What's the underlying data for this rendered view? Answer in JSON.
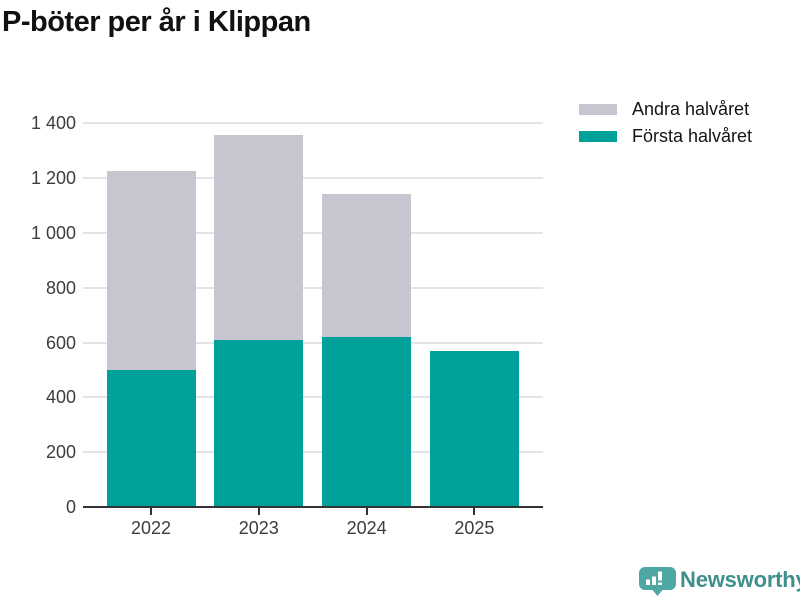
{
  "header": {
    "title": "P-böter per år i Klippan"
  },
  "legend": {
    "items": [
      {
        "label": "Andra halvåret",
        "color": "#c8c5d1"
      },
      {
        "label": "Första halvåret",
        "color": "#00a19b"
      }
    ]
  },
  "chart_data": {
    "type": "bar",
    "stacked": true,
    "title": "P-böter per år i Klippan",
    "categories": [
      "2022",
      "2023",
      "2024",
      "2025"
    ],
    "series": [
      {
        "name": "Första halvåret",
        "color": "#00a19b",
        "values": [
          500,
          610,
          620,
          570
        ]
      },
      {
        "name": "Andra halvåret",
        "color": "#c8c5d1",
        "values": [
          725,
          745,
          520,
          0
        ]
      }
    ],
    "totals": [
      1225,
      1355,
      1140,
      570
    ],
    "xlabel": "",
    "ylabel": "",
    "ylim": [
      0,
      1400
    ],
    "yticks": [
      0,
      200,
      400,
      600,
      800,
      1000,
      1200,
      1400
    ],
    "ytick_labels": [
      "0",
      "200",
      "400",
      "600",
      "800",
      "1 000",
      "1 200",
      "1 400"
    ],
    "grid": true,
    "legend_position": "top-right"
  },
  "branding": {
    "name": "Newsworthy",
    "logo": "bar-chart-speech-bubble-icon",
    "color": "#3f908d"
  }
}
